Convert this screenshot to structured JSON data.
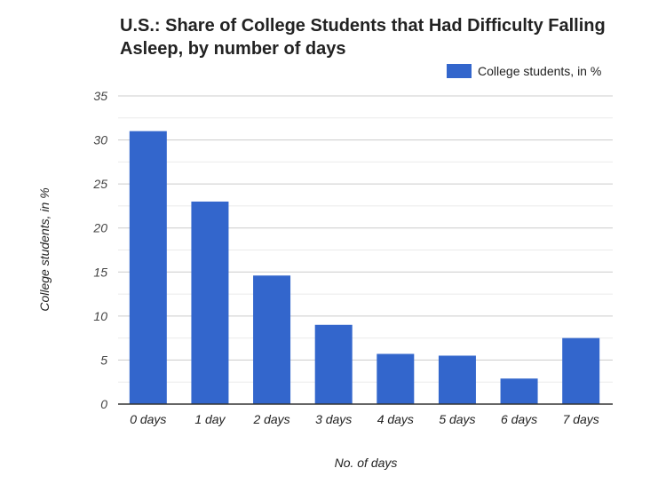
{
  "chart_data": {
    "type": "bar",
    "title": "U.S.: Share of College Students that Had Difficulty Falling Asleep, by number of days",
    "xlabel": "No. of days",
    "ylabel": "College students, in %",
    "categories": [
      "0 days",
      "1 day",
      "2 days",
      "3 days",
      "4 days",
      "5 days",
      "6 days",
      "7 days"
    ],
    "series": [
      {
        "name": "College students, in %",
        "values": [
          31,
          23,
          14.6,
          9,
          5.7,
          5.5,
          2.9,
          7.5
        ],
        "color": "#3366cc"
      }
    ],
    "ylim": [
      0,
      35
    ],
    "yticks": [
      0,
      5,
      10,
      15,
      20,
      25,
      30,
      35
    ],
    "grid": true,
    "legend": "top-right"
  }
}
